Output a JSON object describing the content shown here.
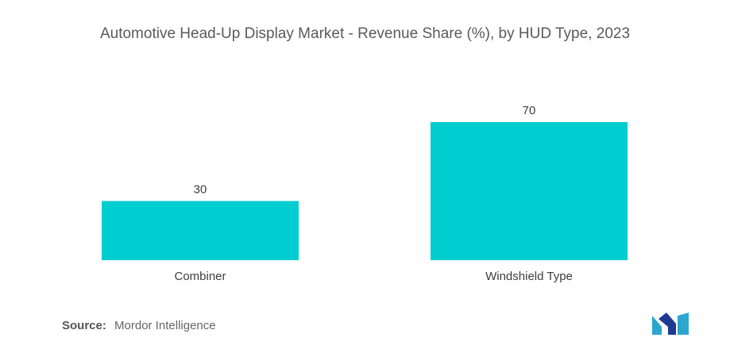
{
  "chart_data": {
    "type": "bar",
    "title": "Automotive Head-Up Display Market - Revenue Share (%), by HUD Type, 2023",
    "categories": [
      "Combiner",
      "Windshield Type"
    ],
    "values": [
      30,
      70
    ],
    "xlabel": "",
    "ylabel": "",
    "ylim": [
      0,
      70
    ],
    "grid": false,
    "legend": "none",
    "colors": {
      "bar": "#00cdd0"
    }
  },
  "footer": {
    "source_label": "Source:",
    "source_value": "Mordor Intelligence",
    "logo_icon": "mordor-intelligence-logo-icon",
    "logo_colors": [
      "#2aa7cf",
      "#1f3a93"
    ]
  }
}
